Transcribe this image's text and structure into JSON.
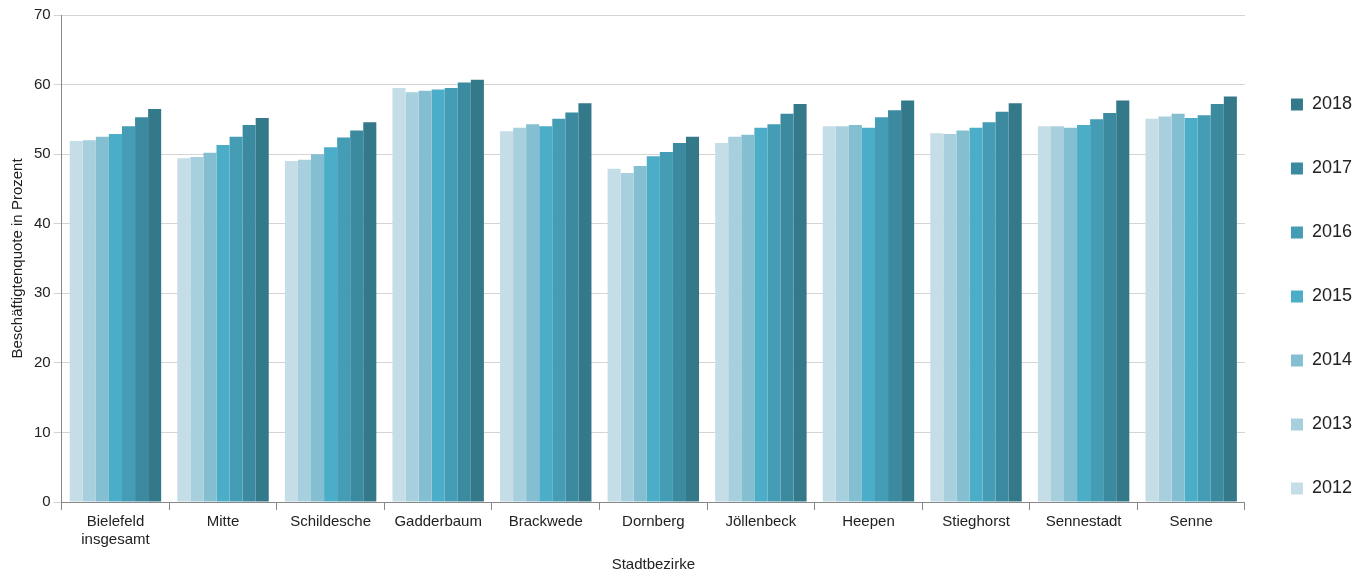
{
  "chart_data": {
    "type": "bar",
    "xlabel": "Stadtbezirke",
    "ylabel": "Beschäftigtenquote in Prozent",
    "categories": [
      "Bielefeld insgesamt",
      "Mitte",
      "Schildesche",
      "Gadderbaum",
      "Brackwede",
      "Dornberg",
      "Jöllenbeck",
      "Heepen",
      "Stieghorst",
      "Sennestadt",
      "Senne"
    ],
    "series": [
      {
        "name": "2012",
        "color": "#c5dde6",
        "values": [
          51.9,
          49.4,
          49.0,
          59.5,
          53.3,
          47.9,
          51.6,
          54.0,
          53.0,
          54.0,
          55.1
        ]
      },
      {
        "name": "2013",
        "color": "#a8cfdd",
        "values": [
          52.0,
          49.6,
          49.2,
          58.9,
          53.8,
          47.3,
          52.5,
          54.0,
          52.9,
          54.0,
          55.4
        ]
      },
      {
        "name": "2014",
        "color": "#84bfd1",
        "values": [
          52.5,
          50.2,
          50.0,
          59.1,
          54.3,
          48.3,
          52.8,
          54.2,
          53.4,
          53.8,
          55.8
        ]
      },
      {
        "name": "2015",
        "color": "#4badc7",
        "values": [
          52.9,
          51.3,
          51.0,
          59.3,
          54.0,
          49.7,
          53.8,
          53.8,
          53.8,
          54.2,
          55.2
        ]
      },
      {
        "name": "2016",
        "color": "#449db5",
        "values": [
          54.0,
          52.5,
          52.4,
          59.5,
          55.1,
          50.3,
          54.3,
          55.3,
          54.6,
          55.0,
          55.6
        ]
      },
      {
        "name": "2017",
        "color": "#3b8aa0",
        "values": [
          55.3,
          54.2,
          53.4,
          60.3,
          56.0,
          51.6,
          55.8,
          56.3,
          56.1,
          55.9,
          57.2
        ]
      },
      {
        "name": "2018",
        "color": "#33798a",
        "values": [
          56.5,
          55.2,
          54.6,
          60.7,
          57.3,
          52.5,
          57.2,
          57.7,
          57.3,
          57.7,
          58.3
        ]
      }
    ],
    "ylim": [
      0,
      70
    ],
    "yticks": [
      0,
      10,
      20,
      30,
      40,
      50,
      60,
      70
    ],
    "grid": "y",
    "legend": "right"
  }
}
